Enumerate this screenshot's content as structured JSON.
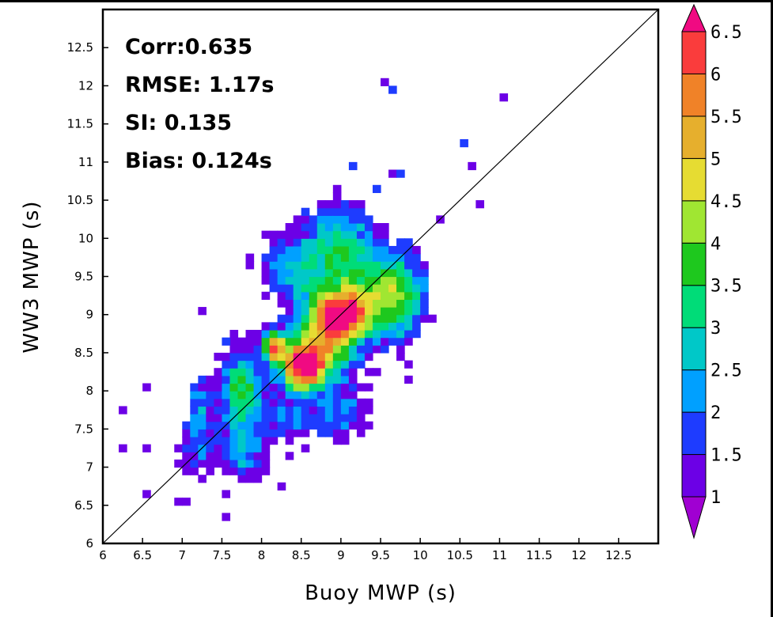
{
  "chart_data": {
    "type": "heatmap",
    "title": "",
    "xlabel": "Buoy MWP (s)",
    "ylabel": "WW3 MWP (s)",
    "xlim": [
      6,
      13
    ],
    "ylim": [
      6,
      13
    ],
    "x_ticks": [
      "6",
      "6.5",
      "7",
      "7.5",
      "8",
      "8.5",
      "9",
      "9.5",
      "10",
      "10.5",
      "11",
      "11.5",
      "12",
      "12.5"
    ],
    "y_ticks": [
      "6",
      "6.5",
      "7",
      "7.5",
      "8",
      "8.5",
      "9",
      "9.5",
      "10",
      "10.5",
      "11",
      "11.5",
      "12",
      "12.5"
    ],
    "reference_line": "1:1",
    "grid": false,
    "bin_size": 0.1,
    "colorbar": {
      "labels": [
        "1",
        "1.5",
        "2",
        "2.5",
        "3",
        "3.5",
        "4",
        "4.5",
        "5",
        "5.5",
        "6",
        "6.5"
      ],
      "levels": [
        1,
        1.5,
        2,
        2.5,
        3,
        3.5,
        4,
        4.5,
        5,
        5.5,
        6,
        6.5
      ],
      "colors": [
        "#a000d2",
        "#6c00e6",
        "#1e3cff",
        "#00a0ff",
        "#00c8c8",
        "#00dc78",
        "#1ec81e",
        "#a0e632",
        "#e6dc32",
        "#e6af2d",
        "#f08228",
        "#fa3c3c",
        "#f00a82"
      ],
      "extend": "both"
    },
    "stats": [
      "Corr:0.635",
      "RMSE: 1.17s",
      "SI: 0.135",
      "Bias: 0.124s"
    ],
    "clusters": [
      {
        "x": 8.5,
        "y": 8.3,
        "sx": 0.2,
        "sy": 0.22,
        "peak": 5.6
      },
      {
        "x": 9.0,
        "y": 9.0,
        "sx": 0.25,
        "sy": 0.2,
        "peak": 4.6
      },
      {
        "x": 8.8,
        "y": 8.6,
        "sx": 0.3,
        "sy": 0.35,
        "peak": 4.2
      },
      {
        "x": 8.15,
        "y": 8.6,
        "sx": 0.1,
        "sy": 0.15,
        "peak": 5.0
      },
      {
        "x": 7.75,
        "y": 8.0,
        "sx": 0.2,
        "sy": 0.45,
        "peak": 3.6
      },
      {
        "x": 9.4,
        "y": 9.3,
        "sx": 0.35,
        "sy": 0.4,
        "peak": 3.0
      },
      {
        "x": 9.8,
        "y": 9.2,
        "sx": 0.25,
        "sy": 0.5,
        "peak": 2.2
      },
      {
        "x": 8.5,
        "y": 9.6,
        "sx": 0.45,
        "sy": 0.35,
        "peak": 2.6
      },
      {
        "x": 9.0,
        "y": 10.1,
        "sx": 0.3,
        "sy": 0.35,
        "peak": 2.3
      },
      {
        "x": 7.2,
        "y": 7.3,
        "sx": 0.2,
        "sy": 0.3,
        "peak": 2.0
      },
      {
        "x": 7.2,
        "y": 7.9,
        "sx": 0.12,
        "sy": 0.25,
        "peak": 1.8
      },
      {
        "x": 7.8,
        "y": 7.1,
        "sx": 0.2,
        "sy": 0.25,
        "peak": 1.8
      },
      {
        "x": 8.3,
        "y": 7.6,
        "sx": 0.2,
        "sy": 0.2,
        "peak": 1.9
      },
      {
        "x": 9.0,
        "y": 7.7,
        "sx": 0.3,
        "sy": 0.25,
        "peak": 2.0
      }
    ],
    "scattered_points": [
      [
        6.5,
        8.1
      ],
      [
        6.5,
        8.0
      ],
      [
        6.3,
        7.7
      ],
      [
        6.3,
        7.3
      ],
      [
        6.5,
        7.3
      ],
      [
        7.3,
        9.05
      ],
      [
        7.5,
        8.7
      ],
      [
        6.95,
        7.05
      ],
      [
        7.0,
        6.9
      ],
      [
        7.1,
        6.6
      ],
      [
        6.9,
        6.6
      ],
      [
        7.2,
        6.85
      ],
      [
        6.55,
        6.65
      ],
      [
        7.55,
        6.65
      ],
      [
        7.55,
        6.35
      ],
      [
        8.05,
        10.05
      ],
      [
        8.5,
        10.35
      ],
      [
        9.15,
        10.95
      ],
      [
        9.55,
        12.05
      ],
      [
        9.65,
        11.95
      ],
      [
        11.05,
        11.85
      ],
      [
        10.6,
        11.25
      ],
      [
        10.65,
        10.95
      ],
      [
        9.65,
        10.85
      ],
      [
        9.75,
        10.85
      ],
      [
        9.45,
        10.65
      ],
      [
        10.25,
        10.25
      ],
      [
        10.75,
        10.45
      ],
      [
        10.1,
        9.55
      ],
      [
        10.05,
        8.95
      ],
      [
        9.85,
        8.35
      ],
      [
        9.85,
        8.15
      ],
      [
        9.45,
        8.25
      ],
      [
        9.2,
        7.55
      ],
      [
        8.75,
        7.45
      ],
      [
        8.55,
        7.25
      ],
      [
        8.3,
        7.15
      ],
      [
        8.25,
        6.75
      ],
      [
        7.95,
        6.95
      ],
      [
        9.05,
        7.35
      ]
    ]
  }
}
